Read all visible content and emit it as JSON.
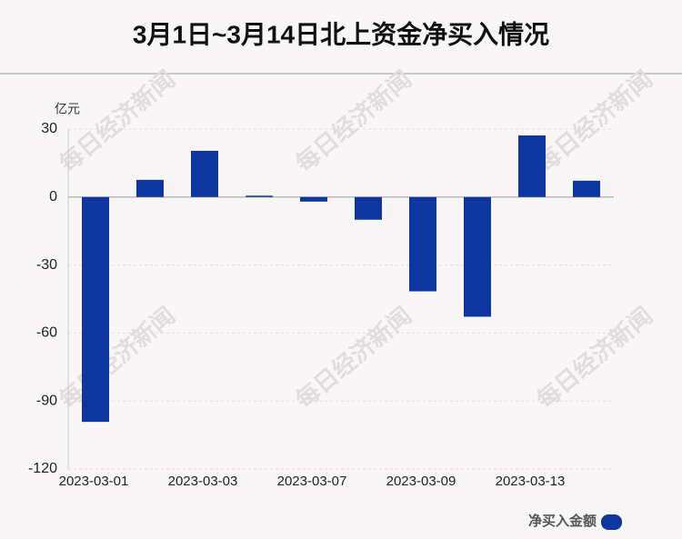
{
  "chart_data": {
    "type": "bar",
    "title": "3月1日~3月14日北上资金净买入情况",
    "y_unit": "亿元",
    "watermark": "每日经济新闻",
    "categories": [
      "2023-03-01",
      null,
      "2023-03-03",
      null,
      "2023-03-07",
      null,
      "2023-03-09",
      null,
      "2023-03-13",
      null
    ],
    "series": [
      {
        "name": "净买入金额",
        "color": "#0d36a0",
        "values": [
          -99.2,
          7.6,
          20.4,
          0.6,
          -2,
          -10,
          -41.6,
          -52.8,
          27.2,
          7.2
        ]
      }
    ],
    "ylim": [
      -120,
      30
    ],
    "yticks": [
      -120,
      -90,
      -60,
      -30,
      0,
      30
    ],
    "grid": true
  }
}
